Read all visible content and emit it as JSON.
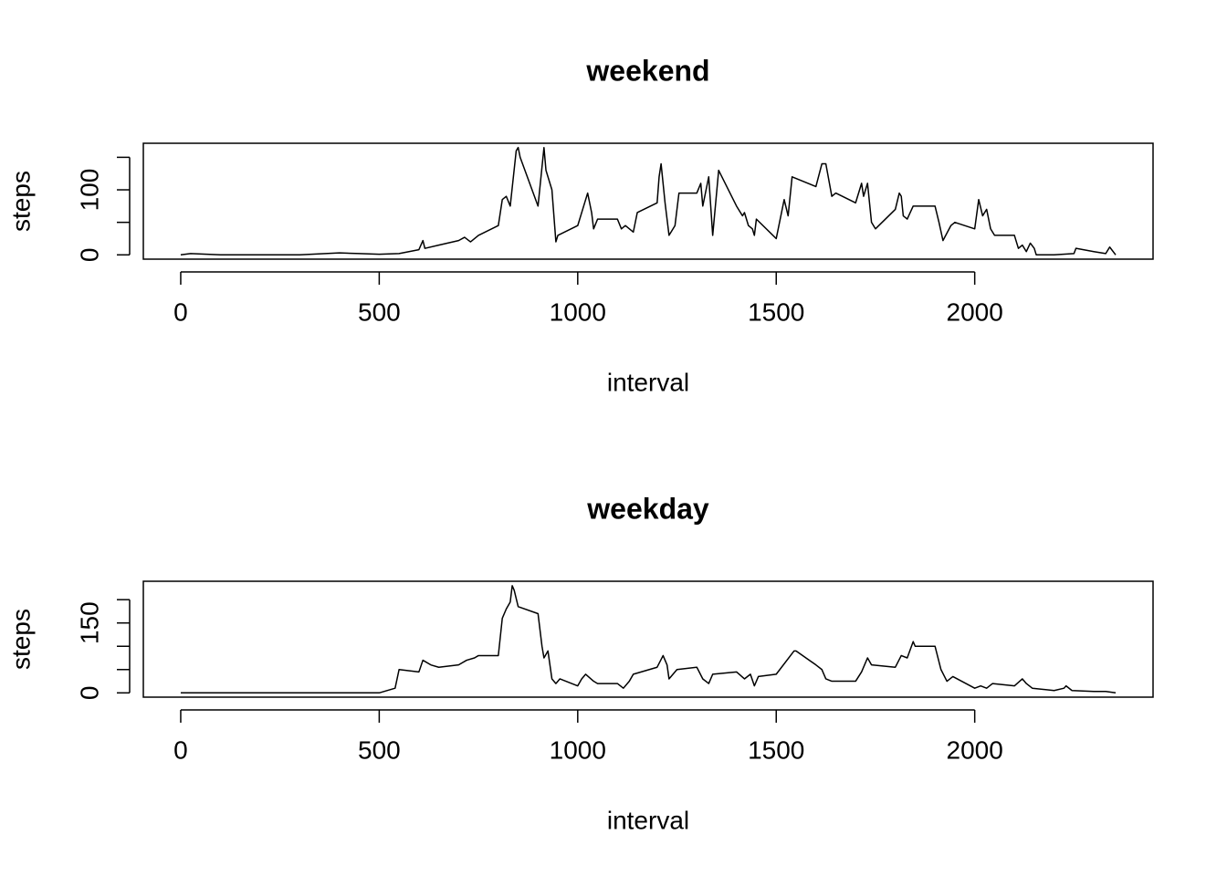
{
  "chart_data": [
    {
      "type": "line",
      "title": "weekend",
      "x_label": "interval",
      "y_label": "steps",
      "color": "#000000",
      "x": [
        0,
        25,
        100,
        300,
        400,
        450,
        500,
        550,
        600,
        610,
        615,
        650,
        700,
        715,
        730,
        750,
        800,
        810,
        820,
        830,
        845,
        850,
        855,
        900,
        915,
        920,
        935,
        945,
        950,
        1000,
        1025,
        1035,
        1040,
        1050,
        1100,
        1110,
        1120,
        1140,
        1150,
        1200,
        1205,
        1210,
        1220,
        1230,
        1245,
        1255,
        1300,
        1310,
        1315,
        1330,
        1340,
        1355,
        1400,
        1415,
        1420,
        1430,
        1440,
        1445,
        1450,
        1500,
        1520,
        1530,
        1540,
        1600,
        1615,
        1625,
        1640,
        1650,
        1700,
        1715,
        1720,
        1730,
        1740,
        1750,
        1800,
        1810,
        1815,
        1820,
        1830,
        1845,
        1900,
        1910,
        1920,
        1940,
        1950,
        2000,
        2010,
        2020,
        2030,
        2040,
        2050,
        2100,
        2110,
        2120,
        2130,
        2140,
        2150,
        2155,
        2200,
        2250,
        2255,
        2300,
        2330,
        2340,
        2355
      ],
      "values": [
        0,
        2,
        0,
        0,
        3,
        2,
        1,
        2,
        8,
        22,
        10,
        15,
        22,
        27,
        20,
        30,
        45,
        85,
        90,
        75,
        160,
        165,
        150,
        75,
        165,
        130,
        100,
        20,
        30,
        45,
        95,
        65,
        40,
        55,
        55,
        40,
        45,
        35,
        65,
        80,
        120,
        140,
        80,
        30,
        45,
        95,
        95,
        110,
        75,
        120,
        30,
        130,
        75,
        60,
        65,
        45,
        40,
        30,
        55,
        25,
        85,
        60,
        120,
        105,
        140,
        140,
        90,
        95,
        80,
        110,
        90,
        110,
        50,
        40,
        70,
        95,
        90,
        60,
        55,
        75,
        75,
        50,
        22,
        45,
        50,
        40,
        85,
        60,
        70,
        40,
        30,
        30,
        10,
        15,
        5,
        18,
        10,
        0,
        0,
        2,
        10,
        5,
        2,
        12,
        0
      ],
      "xlim": [
        -94.2,
        2449.2
      ],
      "ylim": [
        -6.6,
        171.6
      ],
      "xticks": [
        0,
        500,
        1000,
        1500,
        2000
      ],
      "yticks": [
        0,
        {
          "value": 50,
          "label": null
        },
        100,
        {
          "value": 150,
          "label": null
        }
      ]
    },
    {
      "type": "line",
      "title": "weekday",
      "x_label": "interval",
      "y_label": "steps",
      "color": "#000000",
      "x": [
        0,
        500,
        540,
        550,
        600,
        610,
        630,
        650,
        700,
        720,
        740,
        750,
        800,
        810,
        820,
        830,
        835,
        840,
        850,
        900,
        910,
        915,
        925,
        935,
        945,
        955,
        1000,
        1010,
        1020,
        1040,
        1050,
        1100,
        1115,
        1130,
        1140,
        1200,
        1215,
        1225,
        1230,
        1250,
        1300,
        1315,
        1330,
        1340,
        1400,
        1420,
        1435,
        1445,
        1455,
        1500,
        1545,
        1550,
        1600,
        1615,
        1625,
        1640,
        1700,
        1715,
        1730,
        1740,
        1800,
        1815,
        1830,
        1845,
        1850,
        1900,
        1915,
        1930,
        1945,
        2000,
        2015,
        2030,
        2045,
        2100,
        2120,
        2130,
        2145,
        2200,
        2225,
        2230,
        2245,
        2300,
        2330,
        2355
      ],
      "values": [
        0,
        0,
        10,
        50,
        45,
        70,
        60,
        55,
        60,
        70,
        75,
        80,
        80,
        160,
        180,
        195,
        230,
        220,
        185,
        170,
        100,
        75,
        90,
        30,
        20,
        30,
        15,
        30,
        40,
        25,
        20,
        20,
        10,
        25,
        40,
        55,
        80,
        60,
        30,
        50,
        55,
        30,
        20,
        40,
        45,
        30,
        40,
        15,
        35,
        40,
        90,
        90,
        60,
        50,
        30,
        25,
        25,
        45,
        75,
        60,
        55,
        80,
        75,
        110,
        100,
        100,
        50,
        25,
        35,
        10,
        15,
        10,
        20,
        15,
        30,
        20,
        10,
        5,
        10,
        15,
        5,
        3,
        3,
        0
      ],
      "xlim": [
        -94.2,
        2449.2
      ],
      "ylim": [
        -9.2,
        239.5
      ],
      "xticks": [
        0,
        500,
        1000,
        1500,
        2000
      ],
      "yticks": [
        0,
        {
          "value": 50,
          "label": null
        },
        {
          "value": 100,
          "label": null
        },
        150,
        {
          "value": 200,
          "label": null
        }
      ]
    }
  ]
}
